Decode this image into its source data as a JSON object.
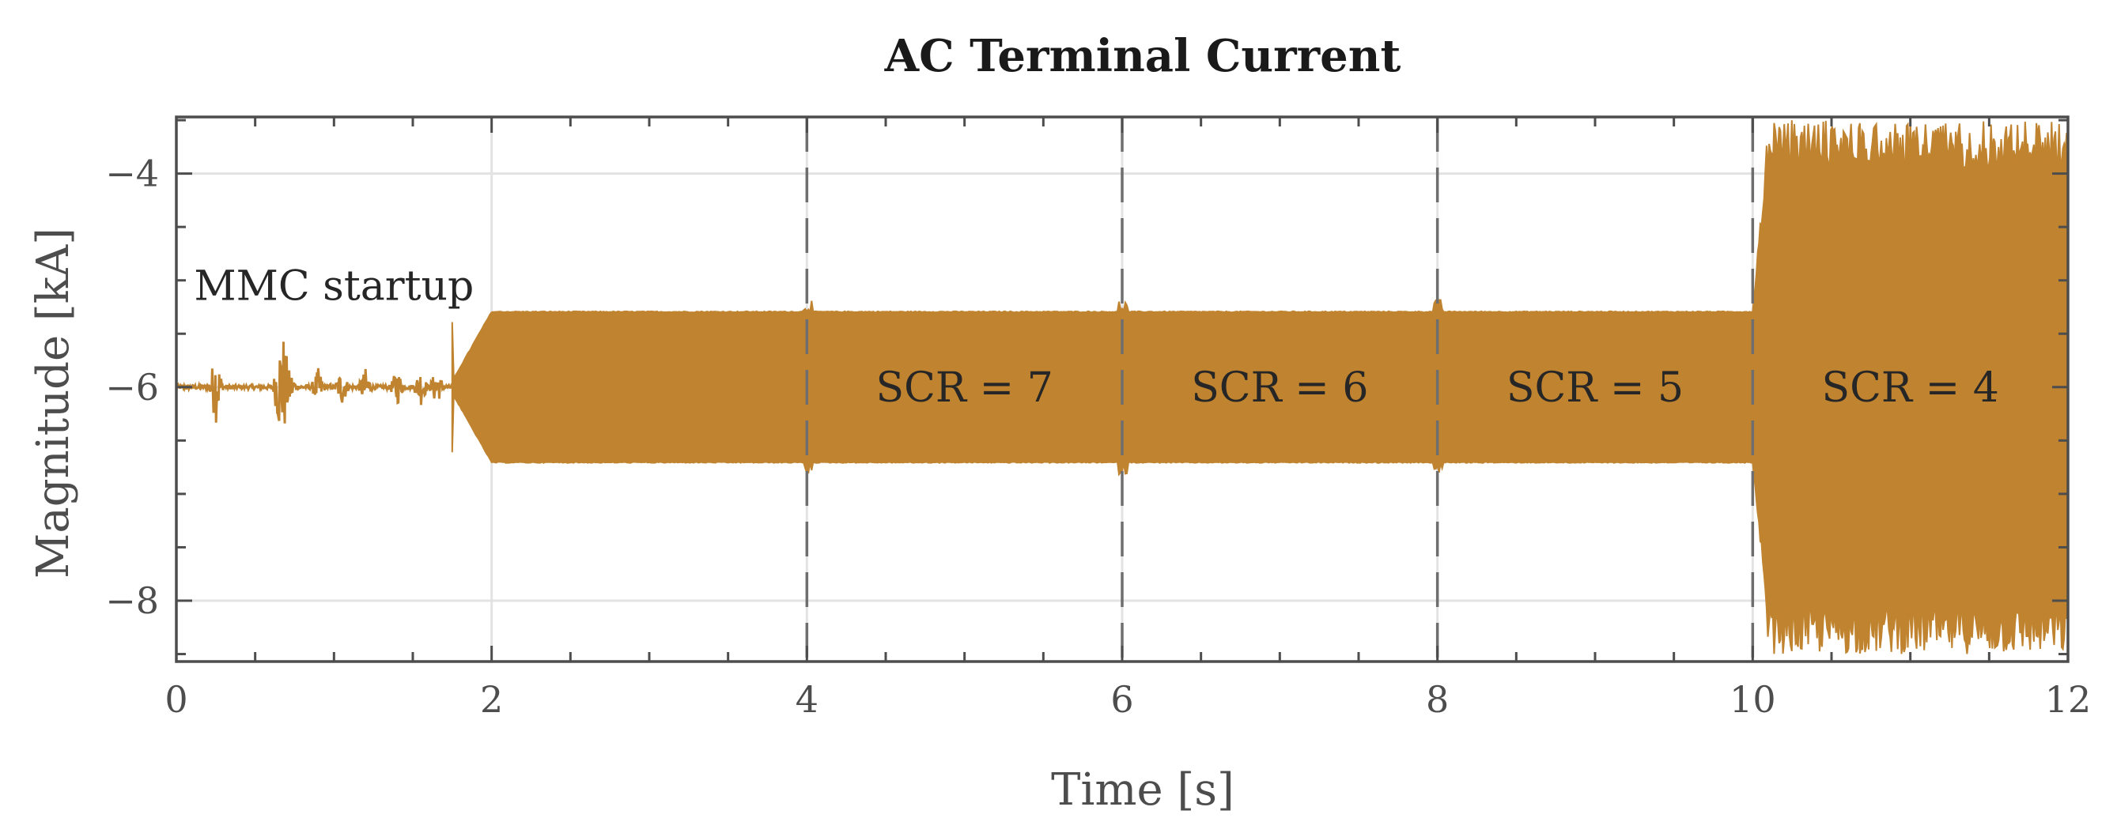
{
  "chart_data": {
    "type": "line",
    "title": "AC Terminal Current",
    "xlabel": "Time [s]",
    "ylabel": "Magnitude [kA]",
    "xlim": [
      0,
      12
    ],
    "ylim": [
      -8.57,
      -3.47
    ],
    "xticks": [
      0,
      2,
      4,
      6,
      8,
      10,
      12
    ],
    "xtick_labels": [
      "0",
      "2",
      "4",
      "6",
      "8",
      "10",
      "12"
    ],
    "yticks": [
      -8,
      -6,
      -4
    ],
    "ytick_labels": [
      "−8",
      "−6",
      "−4"
    ],
    "grid": true,
    "series_color": "#c0832f",
    "series": [
      {
        "segments": [
          {
            "t_start": 0.0,
            "t_end": 1.75,
            "center": -6.0,
            "min": -6.6,
            "max": -5.4,
            "note_envelope": "small transients"
          },
          {
            "t_start": 1.75,
            "t_end": 2.0,
            "center": -6.0,
            "min_start": -6.05,
            "min_end": -6.7,
            "max_start": -5.95,
            "max_end": -5.3
          },
          {
            "t_start": 2.0,
            "t_end": 4.0,
            "center": -6.0,
            "min": -6.7,
            "max": -5.3
          },
          {
            "t_start": 4.0,
            "t_end": 6.0,
            "center": -6.0,
            "min": -6.7,
            "max": -5.3
          },
          {
            "t_start": 6.0,
            "t_end": 8.0,
            "center": -6.0,
            "min": -6.7,
            "max": -5.3
          },
          {
            "t_start": 8.0,
            "t_end": 10.0,
            "center": -6.0,
            "min": -6.7,
            "max": -5.3
          },
          {
            "t_start": 10.0,
            "t_end": 12.0,
            "center": -6.0,
            "min": -8.5,
            "max": -3.5
          }
        ]
      }
    ],
    "vlines": [
      4,
      6,
      8,
      10
    ],
    "annotations": [
      {
        "text": "MMC startup",
        "x": 1.0,
        "y": -5.05
      },
      {
        "text": "SCR = 7",
        "x": 5.0,
        "y": -6.0
      },
      {
        "text": "SCR = 6",
        "x": 7.0,
        "y": -6.0
      },
      {
        "text": "SCR = 5",
        "x": 9.0,
        "y": -6.0
      },
      {
        "text": "SCR = 4",
        "x": 11.0,
        "y": -6.0
      }
    ]
  }
}
